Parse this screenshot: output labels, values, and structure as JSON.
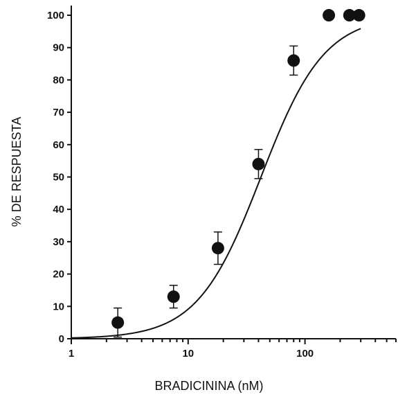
{
  "chart_data": {
    "type": "scatter",
    "title": "",
    "xlabel": "BRADICININA (nM)",
    "ylabel": "% DE RESPUESTA",
    "x_scale": "log",
    "xlim": [
      1,
      600
    ],
    "ylim": [
      0,
      103
    ],
    "x_ticks": [
      {
        "value": 1,
        "label": "1"
      },
      {
        "value": 10,
        "label": "10"
      },
      {
        "value": 100,
        "label": "100"
      }
    ],
    "y_ticks": [
      {
        "value": 0,
        "label": "0"
      },
      {
        "value": 10,
        "label": "10"
      },
      {
        "value": 20,
        "label": "20"
      },
      {
        "value": 30,
        "label": "30"
      },
      {
        "value": 40,
        "label": "40"
      },
      {
        "value": 50,
        "label": "50"
      },
      {
        "value": 60,
        "label": "60"
      },
      {
        "value": 70,
        "label": "70"
      },
      {
        "value": 80,
        "label": "80"
      },
      {
        "value": 90,
        "label": "90"
      },
      {
        "value": 100,
        "label": "100"
      }
    ],
    "grid": false,
    "points": [
      {
        "x": 2.5,
        "y": 5,
        "err": 4.5
      },
      {
        "x": 7.5,
        "y": 13,
        "err": 3.5
      },
      {
        "x": 18,
        "y": 28,
        "err": 5
      },
      {
        "x": 40,
        "y": 54,
        "err": 4.5
      },
      {
        "x": 80,
        "y": 86,
        "err": 4.5
      },
      {
        "x": 160,
        "y": 100,
        "err": 0
      },
      {
        "x": 240,
        "y": 100,
        "err": 0
      },
      {
        "x": 290,
        "y": 100,
        "err": 0
      }
    ],
    "fit_curve": {
      "model": "hill",
      "bottom": 0,
      "top": 100,
      "ec50": 42,
      "hill": 1.6
    }
  }
}
